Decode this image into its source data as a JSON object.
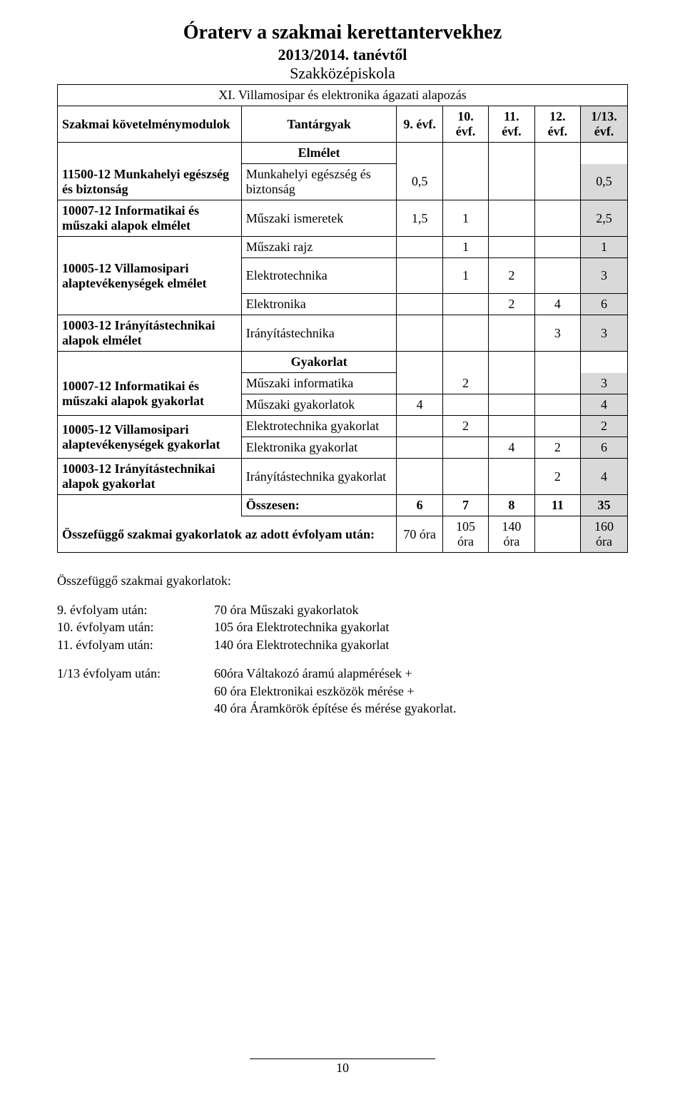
{
  "doc": {
    "title": "Óraterv a szakmai kerettantervekhez",
    "subtitle": "2013/2014. tanévtől",
    "schoolType": "Szakközépiskola",
    "branch": "XI. Villamosipar és elektronika ágazati alapozás",
    "pageNumber": "10"
  },
  "headers": {
    "modules": "Szakmai követelménymodulok",
    "subjects": "Tantárgyak",
    "y9": "9. évf.",
    "y10": "10. évf.",
    "y11": "11. évf.",
    "y12": "12. évf.",
    "y13": "1/13. évf."
  },
  "sections": {
    "theory": "Elmélet",
    "practice": "Gyakorlat"
  },
  "theory": {
    "m1": {
      "module": "11500-12 Munkahelyi egészség és biztonság",
      "subject": "Munkahelyi egészség és biztonság",
      "v9": "0,5",
      "v10": "",
      "v11": "",
      "v12": "",
      "v13": "0,5"
    },
    "m2": {
      "module": "10007-12 Informatikai és műszaki alapok elmélet",
      "subject": "Műszaki ismeretek",
      "v9": "1,5",
      "v10": "1",
      "v11": "",
      "v12": "",
      "v13": "2,5"
    },
    "m3": {
      "module": "10005-12 Villamosipari alaptevékenységek elmélet",
      "r1": {
        "subject": "Műszaki rajz",
        "v9": "",
        "v10": "1",
        "v11": "",
        "v12": "",
        "v13": "1"
      },
      "r2": {
        "subject": "Elektrotechnika",
        "v9": "",
        "v10": "1",
        "v11": "2",
        "v12": "",
        "v13": "3"
      },
      "r3": {
        "subject": "Elektronika",
        "v9": "",
        "v10": "",
        "v11": "2",
        "v12": "4",
        "v13": "6"
      }
    },
    "m4": {
      "module": "10003-12 Irányítástechnikai alapok elmélet",
      "subject": "Irányítástechnika",
      "v9": "",
      "v10": "",
      "v11": "",
      "v12": "3",
      "v13": "3"
    }
  },
  "practice": {
    "m1": {
      "module": "10007-12 Informatikai és műszaki alapok gyakorlat",
      "r1": {
        "subject": "Műszaki informatika",
        "v9": "",
        "v10": "2",
        "v11": "",
        "v12": "",
        "v13": "3"
      },
      "r2": {
        "subject": "Műszaki gyakorlatok",
        "v9": "4",
        "v10": "",
        "v11": "",
        "v12": "",
        "v13": "4"
      }
    },
    "m2": {
      "module": "10005-12 Villamosipari alaptevékenységek gyakorlat",
      "r1": {
        "subject": "Elektrotechnika gyakorlat",
        "v9": "",
        "v10": "2",
        "v11": "",
        "v12": "",
        "v13": "2"
      },
      "r2": {
        "subject": "Elektronika gyakorlat",
        "v9": "",
        "v10": "",
        "v11": "4",
        "v12": "2",
        "v13": "6"
      }
    },
    "m3": {
      "module": "10003-12 Irányítástechnikai alapok gyakorlat",
      "subject": "Irányítástechnika gyakorlat",
      "v9": "",
      "v10": "",
      "v11": "",
      "v12": "2",
      "v13": "4"
    }
  },
  "totals": {
    "label": "Összesen:",
    "v9": "6",
    "v10": "7",
    "v11": "8",
    "v12": "11",
    "v13": "35"
  },
  "contig": {
    "label": "Összefüggő szakmai gyakorlatok az adott évfolyam után:",
    "v9": "70 óra",
    "v10": "105 óra",
    "v11": "140 óra",
    "v12": "",
    "v13": "160 óra"
  },
  "aftertitle": "Összefüggő szakmai gyakorlatok:",
  "after": {
    "l1": {
      "label": "9. évfolyam után:",
      "value": "70 óra Műszaki gyakorlatok"
    },
    "l2": {
      "label": "10. évfolyam után:",
      "value": "105 óra Elektrotechnika gyakorlat"
    },
    "l3": {
      "label": "11. évfolyam után:",
      "value": "140 óra Elektrotechnika gyakorlat"
    },
    "l4": {
      "label": "1/13 évfolyam után:",
      "value": "60óra Váltakozó áramú alapmérések +"
    },
    "l5": {
      "label": "",
      "value": "60 óra Elektronikai eszközök mérése +"
    },
    "l6": {
      "label": "",
      "value": "40 óra Áramkörök építése és mérése gyakorlat."
    }
  },
  "style": {
    "shadeColor": "#d9d9d9",
    "borderColor": "#000000",
    "background": "#ffffff",
    "fontFamily": "Times New Roman",
    "titleFontSize": 28,
    "bodyFontSize": 18
  }
}
